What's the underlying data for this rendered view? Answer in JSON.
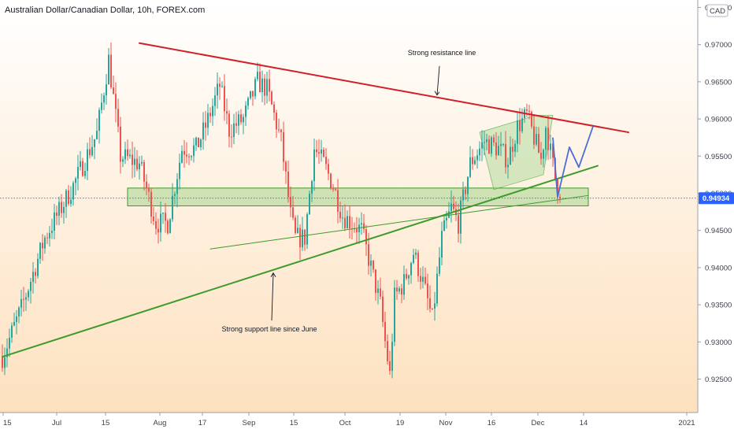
{
  "header": {
    "title": "Australian Dollar/Canadian Dollar, 10h, FOREX.com"
  },
  "price_scale": {
    "currency_label": "CAD",
    "last_price_label": "0.94934"
  },
  "colors": {
    "up_candle": "#26a69a",
    "down_candle": "#ef5350",
    "resistance": "#d0202a",
    "support": "#3d9b2c",
    "zone_fill": "#a5d690",
    "zone_stroke": "#3d9b2c",
    "projection": "#4a6fd4",
    "last_price_box": "#2962ff",
    "bg_top": "#ffffff",
    "bg_bottom": "#fde1bf"
  },
  "chart_data": {
    "type": "candlestick",
    "ylim": [
      0.9205,
      0.976
    ],
    "y_ticks": [
      {
        "value": 0.975,
        "label": "0.97500"
      },
      {
        "value": 0.97,
        "label": "0.97000"
      },
      {
        "value": 0.965,
        "label": "0.96500"
      },
      {
        "value": 0.96,
        "label": "0.96000"
      },
      {
        "value": 0.955,
        "label": "0.95500"
      },
      {
        "value": 0.95,
        "label": "0.95000"
      },
      {
        "value": 0.945,
        "label": "0.94500"
      },
      {
        "value": 0.94,
        "label": "0.94000"
      },
      {
        "value": 0.935,
        "label": "0.93500"
      },
      {
        "value": 0.93,
        "label": "0.93000"
      },
      {
        "value": 0.925,
        "label": "0.92500"
      }
    ],
    "x_ticks": [
      "15",
      "Jul",
      "15",
      "Aug",
      "17",
      "Sep",
      "15",
      "Oct",
      "19",
      "Nov",
      "16",
      "Dec",
      "14",
      "2021"
    ],
    "last_price": 0.94934,
    "anchors": [
      [
        0,
        0.928
      ],
      [
        8,
        0.9345
      ],
      [
        18,
        0.944
      ],
      [
        30,
        0.951
      ],
      [
        40,
        0.958
      ],
      [
        45,
        0.968
      ],
      [
        50,
        0.955
      ],
      [
        58,
        0.954
      ],
      [
        65,
        0.946
      ],
      [
        70,
        0.946
      ],
      [
        76,
        0.956
      ],
      [
        82,
        0.956
      ],
      [
        86,
        0.959
      ],
      [
        92,
        0.9645
      ],
      [
        96,
        0.9585
      ],
      [
        102,
        0.96
      ],
      [
        108,
        0.965
      ],
      [
        112,
        0.964
      ],
      [
        118,
        0.957
      ],
      [
        122,
        0.947
      ],
      [
        124,
        0.944
      ],
      [
        128,
        0.944
      ],
      [
        132,
        0.956
      ],
      [
        136,
        0.954
      ],
      [
        140,
        0.951
      ],
      [
        144,
        0.947
      ],
      [
        148,
        0.946
      ],
      [
        152,
        0.945
      ],
      [
        156,
        0.94
      ],
      [
        160,
        0.935
      ],
      [
        162,
        0.93
      ],
      [
        164,
        0.9255
      ],
      [
        166,
        0.936
      ],
      [
        170,
        0.938
      ],
      [
        174,
        0.942
      ],
      [
        178,
        0.938
      ],
      [
        182,
        0.933
      ],
      [
        186,
        0.944
      ],
      [
        190,
        0.948
      ],
      [
        193,
        0.946
      ],
      [
        198,
        0.954
      ],
      [
        204,
        0.957
      ],
      [
        210,
        0.956
      ],
      [
        214,
        0.9545
      ],
      [
        218,
        0.959
      ],
      [
        222,
        0.9605
      ],
      [
        226,
        0.9565
      ],
      [
        228,
        0.9545
      ],
      [
        230,
        0.959
      ],
      [
        234,
        0.952
      ],
      [
        236,
        0.9495
      ]
    ],
    "annotations": [
      {
        "text": "Strong resistance line",
        "price": 0.9686,
        "bar": 186
      },
      {
        "text": "Strong support line since June",
        "price": 0.9314,
        "bar": 113
      }
    ],
    "resistance_line": {
      "from": [
        58,
        0.9702
      ],
      "to": [
        265,
        0.9582
      ]
    },
    "support_line": {
      "from": [
        0,
        0.928
      ],
      "to": [
        252,
        0.9537
      ]
    },
    "minor_support_line": {
      "from": [
        88,
        0.9425
      ],
      "to": [
        248,
        0.9497
      ]
    },
    "support_zone": {
      "bar_from": 53,
      "bar_to": 248,
      "price_top": 0.9507,
      "price_bottom": 0.9483
    },
    "consolidation_area": {
      "points": [
        [
          202,
          0.9582
        ],
        [
          226,
          0.9605
        ],
        [
          233,
          0.9605
        ],
        [
          229,
          0.9525
        ],
        [
          208,
          0.9505
        ]
      ]
    },
    "projection_path": [
      [
        233,
        0.9575
      ],
      [
        235,
        0.9495
      ],
      [
        240,
        0.9562
      ],
      [
        244,
        0.9535
      ],
      [
        250,
        0.959
      ]
    ]
  }
}
